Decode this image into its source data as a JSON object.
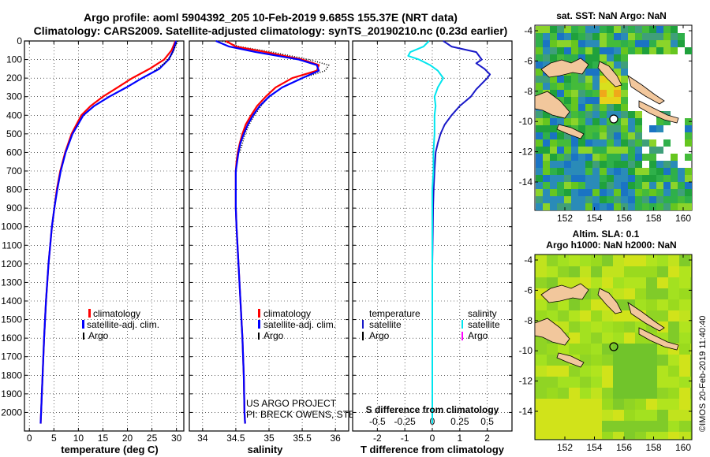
{
  "header": {
    "line1": "Argo profile: aoml 5904392_205 10-Feb-2019 9.685S 155.37E (NRT data)",
    "line2": "Climatology: CARS2009. Satellite-adjusted climatology: synTS_20190210.nc (0.23d earlier)"
  },
  "depth_ticks": [
    "0",
    "100",
    "200",
    "300",
    "400",
    "500",
    "600",
    "700",
    "800",
    "900",
    "1000",
    "1100",
    "1200",
    "1300",
    "1400",
    "1500",
    "1600",
    "1700",
    "1800",
    "1900",
    "2000"
  ],
  "colors": {
    "climatology": "#ff0000",
    "satellite": "#0000ff",
    "argo": "#000000",
    "sat_t": "#1818c8",
    "sat_s": "#00e5ee",
    "argo_s": "#ff00ff",
    "land": "#f2c79c"
  },
  "credits": {
    "project": "US ARGO PROJECT",
    "pi": "PI: BRECK OWENS, STEVE JAYNE, P.E. ROBBINS",
    "imos": "©IMOS 20-Feb-2019 11:40:40"
  },
  "maps": {
    "sst_title": "sat. SST: NaN Argo: NaN",
    "sla_title1": "Altim. SLA: 0.1",
    "sla_title2": "Argo h1000: NaN h2000: NaN",
    "lat_ticks": [
      "-4",
      "-6",
      "-8",
      "-10",
      "-12",
      "-14"
    ],
    "lon_ticks": [
      "152",
      "154",
      "156",
      "158",
      "160"
    ]
  },
  "chart_data": [
    {
      "type": "line",
      "title": "",
      "xlabel": "temperature (deg C)",
      "ylabel": "depth (m)",
      "xlim": [
        -1,
        31.5
      ],
      "ylim": [
        2100,
        0
      ],
      "xticks": [
        "0",
        "5",
        "10",
        "15",
        "20",
        "25",
        "30"
      ],
      "legend": [
        "climatology",
        "satellite-adj. clim.",
        "Argo"
      ],
      "series": [
        {
          "name": "climatology",
          "depth": [
            0,
            50,
            100,
            150,
            200,
            250,
            300,
            350,
            400,
            500,
            600,
            700,
            800,
            900,
            1000,
            1200,
            1400,
            1600,
            1800,
            2000,
            2060
          ],
          "values": [
            29.8,
            29.0,
            27.5,
            24.5,
            21.0,
            18.0,
            15.0,
            12.5,
            10.6,
            8.6,
            7.3,
            6.3,
            5.6,
            5.1,
            4.6,
            3.9,
            3.4,
            3.0,
            2.7,
            2.4,
            2.3
          ]
        },
        {
          "name": "satellite-adj. clim.",
          "depth": [
            0,
            50,
            100,
            150,
            200,
            250,
            300,
            350,
            400,
            500,
            600,
            700,
            800,
            900,
            1000,
            1200,
            1400,
            1600,
            1800,
            2000,
            2060
          ],
          "values": [
            29.9,
            29.4,
            28.4,
            26.5,
            23.0,
            19.8,
            16.3,
            13.2,
            11.0,
            8.8,
            7.4,
            6.4,
            5.7,
            5.1,
            4.6,
            3.9,
            3.4,
            3.0,
            2.7,
            2.4,
            2.3
          ]
        }
      ]
    },
    {
      "type": "line",
      "xlabel": "salinity",
      "ylabel": "depth (m)",
      "xlim": [
        33.8,
        36.2
      ],
      "ylim": [
        2100,
        0
      ],
      "xticks": [
        "34",
        "34.5",
        "35",
        "35.5",
        "36"
      ],
      "legend": [
        "climatology",
        "satellite-adj. clim.",
        "Argo"
      ],
      "series": [
        {
          "name": "climatology",
          "depth": [
            0,
            30,
            60,
            100,
            130,
            160,
            200,
            250,
            300,
            350,
            400,
            450,
            500,
            550,
            600,
            650,
            700,
            800,
            900,
            1000,
            1200,
            1400,
            1600,
            1800,
            2000,
            2060
          ],
          "values": [
            34.35,
            34.5,
            34.95,
            35.5,
            35.75,
            35.72,
            35.35,
            35.1,
            34.95,
            34.82,
            34.73,
            34.65,
            34.6,
            34.56,
            34.53,
            34.51,
            34.5,
            34.5,
            34.5,
            34.51,
            34.54,
            34.57,
            34.6,
            34.62,
            34.63,
            34.64
          ]
        },
        {
          "name": "satellite-adj. clim.",
          "depth": [
            0,
            30,
            60,
            100,
            130,
            160,
            200,
            250,
            300,
            350,
            400,
            450,
            500,
            550,
            600,
            650,
            700,
            800,
            900,
            1000,
            1200,
            1400,
            1600,
            1800,
            2000,
            2060
          ],
          "values": [
            34.2,
            34.4,
            34.8,
            35.45,
            35.72,
            35.75,
            35.5,
            35.2,
            35.0,
            34.86,
            34.76,
            34.68,
            34.62,
            34.57,
            34.54,
            34.52,
            34.5,
            34.5,
            34.5,
            34.51,
            34.54,
            34.57,
            34.6,
            34.62,
            34.63,
            34.64
          ]
        },
        {
          "name": "Argo",
          "depth": [
            0,
            30,
            60,
            100,
            130,
            160,
            200,
            250,
            300,
            350,
            400,
            450,
            500,
            600
          ],
          "values": [
            34.3,
            34.55,
            35.05,
            35.6,
            35.9,
            35.85,
            35.5,
            35.2,
            35.0,
            34.88,
            34.78,
            34.7,
            34.64,
            34.56
          ]
        }
      ]
    },
    {
      "type": "line",
      "title": "S difference from climatology",
      "xlabel": "T difference from climatology",
      "xlim": [
        -2.9,
        2.9
      ],
      "ylim": [
        2100,
        0
      ],
      "xticks": [
        "-2",
        "-1",
        "0",
        "1",
        "2"
      ],
      "sticks": [
        "-0.5",
        "-0.25",
        "0",
        "0.25",
        "0.5"
      ],
      "legend_t": {
        "head": "temperature",
        "items": [
          "satellite",
          "Argo"
        ]
      },
      "legend_s": {
        "head": "salinity",
        "items": [
          "satellite",
          "Argo"
        ]
      },
      "series": [
        {
          "name": "T satellite",
          "depth": [
            0,
            30,
            60,
            80,
            100,
            120,
            150,
            180,
            200,
            230,
            260,
            300,
            350,
            400,
            450,
            500,
            550,
            600,
            700,
            800,
            900,
            1000,
            1200,
            1400,
            1600,
            1800,
            2000,
            2060
          ],
          "values": [
            0.4,
            0.7,
            1.6,
            1.7,
            1.8,
            1.6,
            1.9,
            2.1,
            2.0,
            1.8,
            1.6,
            1.4,
            1.0,
            0.7,
            0.45,
            0.3,
            0.2,
            0.12,
            0.08,
            0.05,
            0.03,
            0.02,
            0.0,
            0.0,
            0.0,
            0.0,
            0.0,
            0.0
          ]
        },
        {
          "name": "S satellite",
          "depth": [
            0,
            30,
            60,
            80,
            100,
            130,
            160,
            200,
            250,
            300,
            350,
            400,
            500,
            600,
            700,
            800,
            900,
            1000,
            1200,
            1400,
            1600,
            1800,
            2000,
            2060
          ],
          "values": [
            -0.03,
            -0.08,
            -0.2,
            -0.22,
            -0.12,
            -0.02,
            0.05,
            0.1,
            0.05,
            0.02,
            0.03,
            0.02,
            0.02,
            0.01,
            0.01,
            0.0,
            0.0,
            0.0,
            0.0,
            0.0,
            0.0,
            0.0,
            0.0,
            0.0
          ]
        }
      ]
    }
  ]
}
